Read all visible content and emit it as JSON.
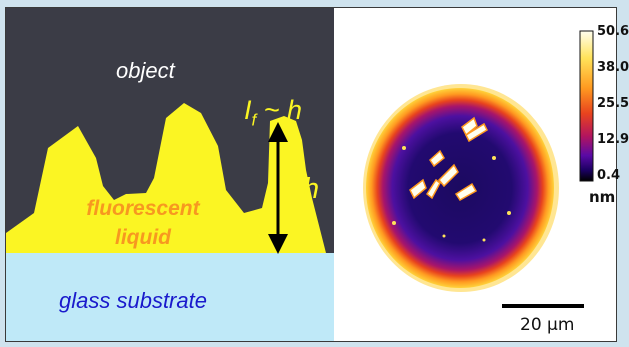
{
  "schematic": {
    "object_label": "object",
    "formula_label": "I",
    "formula_sub": "f",
    "formula_rest": " ~ h",
    "height_label": "h",
    "liquid_line1": "fluorescent",
    "liquid_line2": "liquid",
    "substrate_label": "glass substrate",
    "colors": {
      "object": "#3b3c46",
      "liquid": "#fbf523",
      "substrate": "#bfe9f8",
      "liquid_text": "#f79820",
      "substrate_text": "#1a1acc",
      "object_text": "#ffffff",
      "formula_text": "#fbf523"
    }
  },
  "image_panel": {
    "colorbar_ticks": [
      "50.6",
      "38.0",
      "25.5",
      "12.9",
      "0.4"
    ],
    "colorbar_unit": "nm",
    "scalebar_label": "20 µm",
    "colormap": [
      "#fffff0",
      "#ffe35a",
      "#ff9a20",
      "#e8431e",
      "#b3155e",
      "#5a0aa6",
      "#1a0060",
      "#000000"
    ]
  }
}
